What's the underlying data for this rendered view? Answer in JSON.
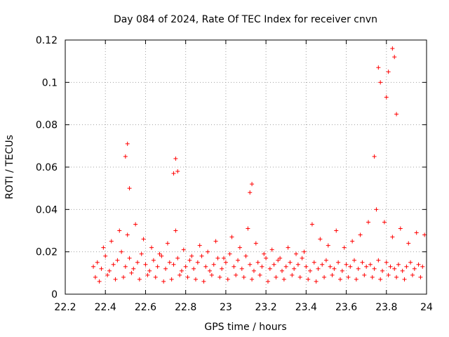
{
  "chart_data": {
    "type": "scatter",
    "title": "Day 084 of 2024, Rate Of TEC Index for receiver cnvn",
    "xlabel": "GPS time / hours",
    "ylabel": "ROTI / TECUs",
    "xlim": [
      22.2,
      24.0
    ],
    "ylim": [
      0,
      0.12
    ],
    "xticks": [
      "22.2",
      "22.4",
      "22.6",
      "22.8",
      "23",
      "23.2",
      "23.4",
      "23.6",
      "23.8",
      "24"
    ],
    "yticks": [
      "0",
      "0.02",
      "0.04",
      "0.06",
      "0.08",
      "0.1",
      "0.12"
    ],
    "grid": true,
    "marker": "+",
    "color": "#ff0000",
    "series": [
      {
        "name": "ROTI",
        "x": [
          22.34,
          22.36,
          22.38,
          22.4,
          22.42,
          22.44,
          22.46,
          22.48,
          22.5,
          22.52,
          22.54,
          22.56,
          22.58,
          22.6,
          22.62,
          22.64,
          22.66,
          22.68,
          22.7,
          22.72,
          22.74,
          22.76,
          22.78,
          22.8,
          22.82,
          22.84,
          22.86,
          22.88,
          22.9,
          22.92,
          22.94,
          22.96,
          22.98,
          23.0,
          23.02,
          23.04,
          23.06,
          23.08,
          23.1,
          23.12,
          23.14,
          23.16,
          23.18,
          23.2,
          23.22,
          23.24,
          23.26,
          23.28,
          23.3,
          23.32,
          23.34,
          23.36,
          23.38,
          23.4,
          23.42,
          23.44,
          23.46,
          23.48,
          23.5,
          23.52,
          23.54,
          23.56,
          23.58,
          23.6,
          23.62,
          23.64,
          23.66,
          23.68,
          23.7,
          23.72,
          23.74,
          23.76,
          23.78,
          23.8,
          23.82,
          23.84,
          23.86,
          23.88,
          23.9,
          23.92,
          23.94,
          23.96,
          23.98,
          22.35,
          22.39,
          22.43,
          22.47,
          22.51,
          22.55,
          22.59,
          22.63,
          22.67,
          22.71,
          22.75,
          22.79,
          22.83,
          22.87,
          22.91,
          22.95,
          22.99,
          23.03,
          23.07,
          23.11,
          23.15,
          23.19,
          23.23,
          23.27,
          23.31,
          23.35,
          23.39,
          23.43,
          23.47,
          23.51,
          23.55,
          23.59,
          23.63,
          23.67,
          23.71,
          23.75,
          23.79,
          23.83,
          23.87,
          23.91,
          23.95,
          23.99,
          22.37,
          22.41,
          22.45,
          22.49,
          22.53,
          22.57,
          22.61,
          22.65,
          22.69,
          22.73,
          22.77,
          22.81,
          22.85,
          22.89,
          22.93,
          22.97,
          23.01,
          23.05,
          23.09,
          23.13,
          23.17,
          23.21,
          23.25,
          23.29,
          23.33,
          23.37,
          23.41,
          23.45,
          23.49,
          23.53,
          23.57,
          23.61,
          23.65,
          23.69,
          23.73,
          23.77,
          23.81,
          23.85,
          23.89,
          23.93,
          23.97,
          22.5,
          22.51,
          22.52,
          22.74,
          22.75,
          22.76,
          23.12,
          23.13,
          23.74,
          23.76,
          23.77,
          23.8,
          23.81,
          23.83,
          23.84,
          23.85
        ],
        "y": [
          0.013,
          0.015,
          0.012,
          0.018,
          0.011,
          0.014,
          0.016,
          0.02,
          0.013,
          0.017,
          0.012,
          0.015,
          0.019,
          0.014,
          0.011,
          0.016,
          0.013,
          0.018,
          0.012,
          0.015,
          0.014,
          0.017,
          0.011,
          0.013,
          0.016,
          0.012,
          0.015,
          0.018,
          0.013,
          0.011,
          0.014,
          0.017,
          0.012,
          0.015,
          0.019,
          0.013,
          0.016,
          0.012,
          0.018,
          0.014,
          0.011,
          0.015,
          0.013,
          0.017,
          0.012,
          0.014,
          0.016,
          0.011,
          0.013,
          0.015,
          0.012,
          0.014,
          0.017,
          0.013,
          0.011,
          0.015,
          0.012,
          0.014,
          0.016,
          0.013,
          0.012,
          0.015,
          0.011,
          0.014,
          0.013,
          0.016,
          0.012,
          0.015,
          0.013,
          0.014,
          0.012,
          0.016,
          0.011,
          0.015,
          0.013,
          0.012,
          0.014,
          0.011,
          0.013,
          0.015,
          0.012,
          0.014,
          0.013,
          0.008,
          0.022,
          0.025,
          0.03,
          0.028,
          0.033,
          0.026,
          0.022,
          0.019,
          0.024,
          0.03,
          0.021,
          0.018,
          0.023,
          0.02,
          0.025,
          0.017,
          0.027,
          0.022,
          0.031,
          0.024,
          0.019,
          0.021,
          0.017,
          0.022,
          0.019,
          0.02,
          0.033,
          0.026,
          0.023,
          0.03,
          0.022,
          0.025,
          0.028,
          0.034,
          0.04,
          0.034,
          0.027,
          0.031,
          0.024,
          0.029,
          0.028,
          0.006,
          0.009,
          0.007,
          0.008,
          0.01,
          0.007,
          0.009,
          0.008,
          0.006,
          0.007,
          0.009,
          0.008,
          0.007,
          0.006,
          0.009,
          0.008,
          0.007,
          0.009,
          0.008,
          0.007,
          0.009,
          0.006,
          0.008,
          0.007,
          0.009,
          0.008,
          0.007,
          0.006,
          0.008,
          0.009,
          0.007,
          0.008,
          0.007,
          0.009,
          0.008,
          0.007,
          0.009,
          0.008,
          0.007,
          0.009,
          0.008,
          0.065,
          0.071,
          0.05,
          0.057,
          0.064,
          0.058,
          0.048,
          0.052,
          0.065,
          0.107,
          0.1,
          0.093,
          0.105,
          0.116,
          0.112,
          0.085
        ]
      }
    ]
  }
}
